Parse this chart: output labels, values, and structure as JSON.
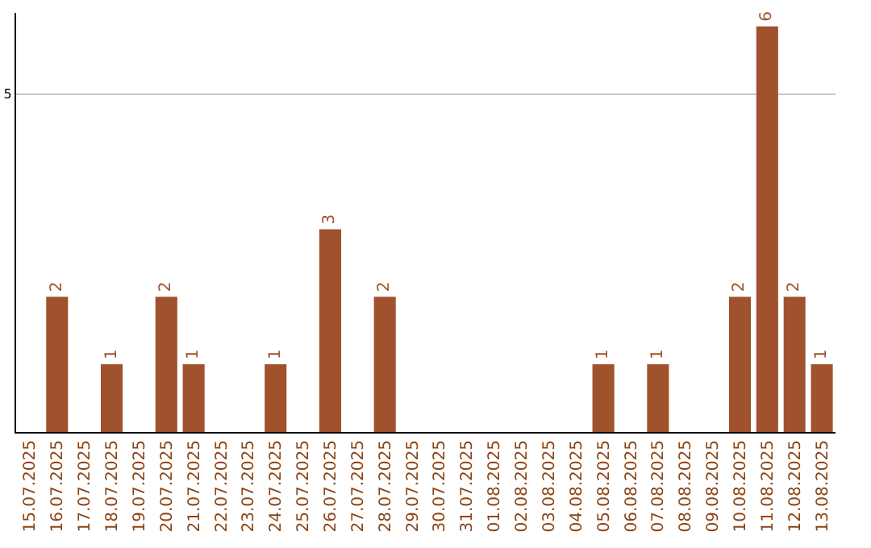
{
  "chart_data": {
    "type": "bar",
    "categories": [
      "15.07.2025",
      "16.07.2025",
      "17.07.2025",
      "18.07.2025",
      "19.07.2025",
      "20.07.2025",
      "21.07.2025",
      "22.07.2025",
      "23.07.2025",
      "24.07.2025",
      "25.07.2025",
      "26.07.2025",
      "27.07.2025",
      "28.07.2025",
      "29.07.2025",
      "30.07.2025",
      "31.07.2025",
      "01.08.2025",
      "02.08.2025",
      "03.08.2025",
      "04.08.2025",
      "05.08.2025",
      "06.08.2025",
      "07.08.2025",
      "08.08.2025",
      "09.08.2025",
      "10.08.2025",
      "11.08.2025",
      "12.08.2025",
      "13.08.2025"
    ],
    "values": [
      0,
      2,
      0,
      1,
      0,
      2,
      1,
      0,
      0,
      1,
      0,
      3,
      0,
      2,
      0,
      0,
      0,
      0,
      0,
      0,
      0,
      1,
      0,
      1,
      0,
      0,
      2,
      6,
      2,
      1
    ],
    "value_labels": [
      null,
      "2",
      null,
      "1",
      null,
      "2",
      "1",
      null,
      null,
      "1",
      null,
      "3",
      null,
      "2",
      null,
      null,
      null,
      null,
      null,
      null,
      null,
      "1",
      null,
      "1",
      null,
      null,
      "2",
      "6",
      "2",
      "1"
    ],
    "color": "#a0522d",
    "ylim": [
      0,
      6.2
    ],
    "yticks": [
      5
    ],
    "grid": "y"
  }
}
